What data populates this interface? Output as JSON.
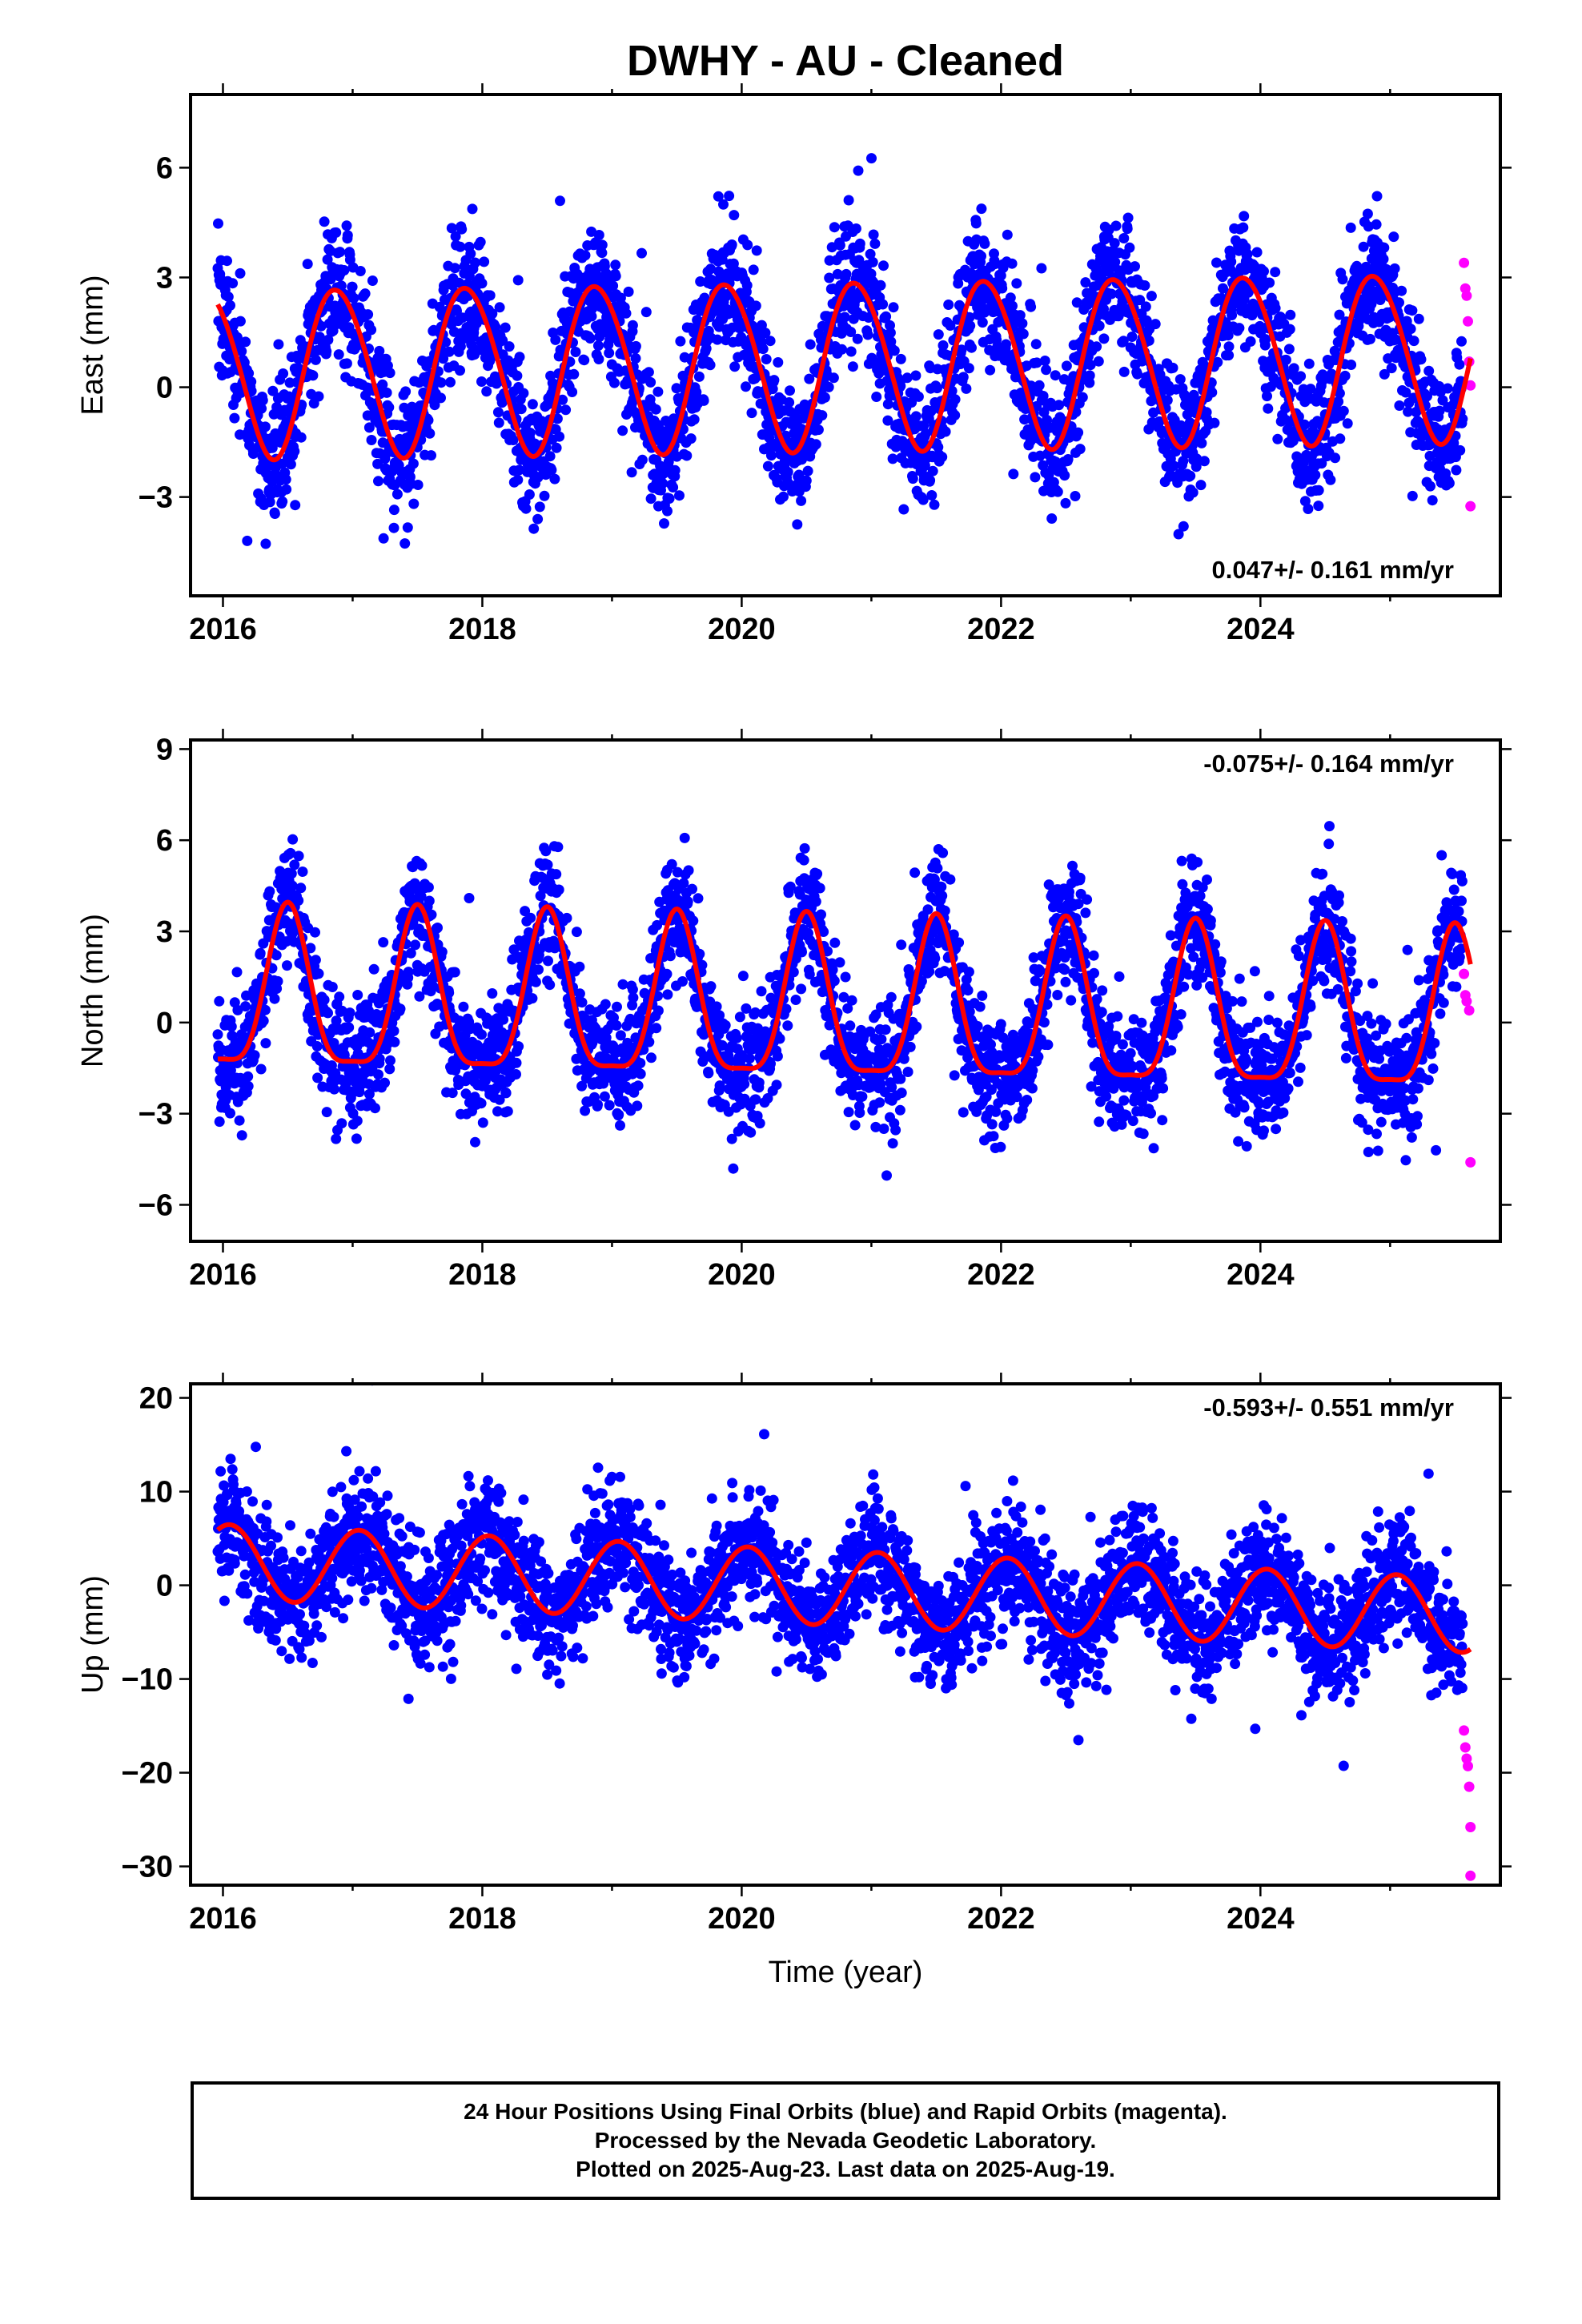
{
  "title": "DWHY  - AU - Cleaned",
  "xlabel": "Time (year)",
  "footer": {
    "line1": "24 Hour Positions Using Final Orbits (blue) and Rapid Orbits (magenta).",
    "line2": "Processed by the Nevada Geodetic Laboratory.",
    "line3": "Plotted on 2025-Aug-23. Last data on 2025-Aug-19."
  },
  "colors": {
    "final": "#0000ff",
    "rapid": "#ff00ff",
    "model": "#ff0000",
    "axes": "#000000"
  },
  "chart_data": [
    {
      "type": "scatter",
      "component": "East",
      "ylabel": "East (mm)",
      "xlim": [
        2015.75,
        2025.85
      ],
      "ylim": [
        -5.7,
        8.0
      ],
      "xticks": [
        2016,
        2018,
        2020,
        2022,
        2024
      ],
      "yticks": [
        -3,
        0,
        3,
        6
      ],
      "rate_label": "0.047+/- 0.161 mm/yr",
      "rate_position": "bottom-right",
      "model": {
        "offset": 0.4,
        "rate": 0.047,
        "annual_amp": 2.3,
        "annual_peak": 0.88,
        "semi_amp": 0.15,
        "semi_peak": 0.2,
        "noise_sd": 0.9
      },
      "rapid_points": {
        "x": [
          2025.57,
          2025.58,
          2025.59,
          2025.6,
          2025.61,
          2025.62,
          2025.62
        ],
        "y": [
          3.4,
          2.7,
          2.5,
          1.8,
          0.7,
          0.05,
          -3.25
        ]
      }
    },
    {
      "type": "scatter",
      "component": "North",
      "ylabel": "North (mm)",
      "xlim": [
        2015.75,
        2025.85
      ],
      "ylim": [
        -7.2,
        9.3
      ],
      "xticks": [
        2016,
        2018,
        2020,
        2022,
        2024
      ],
      "yticks": [
        -6,
        -3,
        0,
        3,
        6,
        9
      ],
      "rate_label": "-0.075+/- 0.164 mm/yr",
      "rate_position": "top-right",
      "model": {
        "offset": 0.7,
        "rate": -0.075,
        "annual_amp": 2.6,
        "annual_peak": 0.5,
        "semi_amp": 0.7,
        "semi_peak": 0.5,
        "noise_sd": 1.0
      },
      "rapid_points": {
        "x": [
          2025.57,
          2025.58,
          2025.59,
          2025.61,
          2025.62
        ],
        "y": [
          1.6,
          0.9,
          0.7,
          0.4,
          -4.6
        ]
      }
    },
    {
      "type": "scatter",
      "component": "Up",
      "ylabel": "Up (mm)",
      "xlim": [
        2015.75,
        2025.85
      ],
      "ylim": [
        -32.0,
        21.5
      ],
      "xticks": [
        2016,
        2018,
        2020,
        2022,
        2024
      ],
      "yticks": [
        -30,
        -20,
        -10,
        0,
        10,
        20
      ],
      "rate_label": "-0.593+/- 0.551 mm/yr",
      "rate_position": "top-right",
      "model": {
        "offset": 2.5,
        "rate": -0.593,
        "annual_amp": 4.0,
        "annual_peak": 0.05,
        "semi_amp": 0.0,
        "semi_peak": 0.0,
        "noise_sd": 3.2
      },
      "rapid_points": {
        "x": [
          2025.57,
          2025.58,
          2025.59,
          2025.6,
          2025.61,
          2025.62,
          2025.62
        ],
        "y": [
          -15.5,
          -17.3,
          -18.5,
          -19.3,
          -21.5,
          -25.8,
          -31.0
        ]
      }
    }
  ]
}
